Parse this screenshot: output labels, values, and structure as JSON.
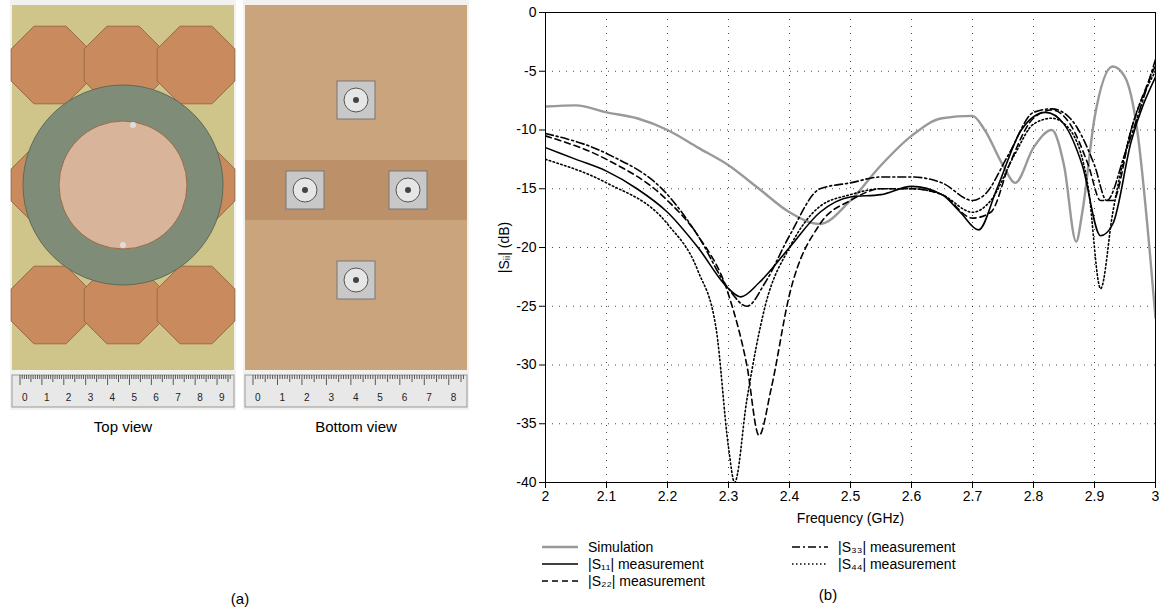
{
  "panel_labels": [
    "(a)",
    "(b)"
  ],
  "photos": [
    {
      "caption": "Top view",
      "ruler_labels": [
        0,
        1,
        2,
        3,
        4,
        5,
        6,
        7,
        8,
        9
      ]
    },
    {
      "caption": "Bottom view",
      "ruler_labels": [
        0,
        1,
        2,
        3,
        4,
        5,
        6,
        7,
        8
      ]
    }
  ],
  "chart_data": {
    "type": "line",
    "x_label": "Frequency (GHz)",
    "y_label": "|Sᵢᵢ| (dB)",
    "xlim": [
      2,
      3
    ],
    "xticks": [
      2,
      2.1,
      2.2,
      2.3,
      2.4,
      2.5,
      2.6,
      2.7,
      2.8,
      2.9,
      3
    ],
    "ylim": [
      -40,
      0
    ],
    "yticks": [
      -40,
      -35,
      -30,
      -25,
      -20,
      -15,
      -10,
      -5,
      0
    ],
    "grid": true,
    "legend": "bottom",
    "series": [
      {
        "name": "Simulation",
        "color": "#999999",
        "line_style": "solid",
        "x": [
          2.0,
          2.05,
          2.1,
          2.15,
          2.2,
          2.25,
          2.3,
          2.35,
          2.4,
          2.45,
          2.5,
          2.55,
          2.6,
          2.65,
          2.7,
          2.72,
          2.75,
          2.77,
          2.8,
          2.83,
          2.85,
          2.87,
          2.88,
          2.9,
          2.93,
          2.95,
          2.97,
          2.99,
          3.0
        ],
        "values": [
          -8,
          -7.9,
          -8.5,
          -9,
          -10,
          -11.5,
          -13,
          -15,
          -17,
          -18,
          -16,
          -13,
          -10.5,
          -9,
          -8.8,
          -10,
          -13,
          -14.5,
          -11.5,
          -10,
          -13,
          -19.5,
          -17,
          -9,
          -4.6,
          -5.5,
          -10,
          -20,
          -26
        ]
      },
      {
        "name": "|S₁₁| measurement",
        "color": "#000000",
        "line_style": "solid",
        "x": [
          2.0,
          2.05,
          2.1,
          2.15,
          2.2,
          2.25,
          2.3,
          2.32,
          2.35,
          2.4,
          2.45,
          2.5,
          2.55,
          2.6,
          2.65,
          2.68,
          2.71,
          2.74,
          2.78,
          2.82,
          2.85,
          2.88,
          2.91,
          2.93,
          2.96,
          3.0
        ],
        "values": [
          -11.5,
          -12.5,
          -13.5,
          -15,
          -17,
          -20,
          -23.5,
          -24.2,
          -23,
          -20,
          -17,
          -15.7,
          -15.5,
          -14.8,
          -15.5,
          -17,
          -18.5,
          -15,
          -10,
          -8.5,
          -9.5,
          -13,
          -19,
          -18,
          -11,
          -5.5
        ]
      },
      {
        "name": "|S₂₂| measurement",
        "color": "#000000",
        "line_style": "dashed",
        "x": [
          2.0,
          2.1,
          2.2,
          2.25,
          2.3,
          2.33,
          2.35,
          2.37,
          2.4,
          2.45,
          2.5,
          2.55,
          2.6,
          2.65,
          2.7,
          2.73,
          2.76,
          2.8,
          2.83,
          2.86,
          2.89,
          2.91,
          2.93,
          2.96,
          3.0
        ],
        "values": [
          -10.5,
          -12.5,
          -16,
          -19,
          -24,
          -30,
          -36,
          -32,
          -24,
          -18,
          -16,
          -15,
          -15,
          -15.5,
          -17.5,
          -17,
          -13,
          -9,
          -8.3,
          -9.5,
          -13,
          -16,
          -16,
          -10,
          -4.5
        ]
      },
      {
        "name": "|S₃₃| measurement",
        "color": "#000000",
        "line_style": "dashdot",
        "x": [
          2.0,
          2.1,
          2.2,
          2.25,
          2.3,
          2.33,
          2.36,
          2.4,
          2.45,
          2.5,
          2.55,
          2.6,
          2.65,
          2.7,
          2.72,
          2.76,
          2.8,
          2.83,
          2.86,
          2.9,
          2.92,
          2.95,
          3.0
        ],
        "values": [
          -10.3,
          -12,
          -15.5,
          -19,
          -23.5,
          -25,
          -23,
          -19,
          -15,
          -14.5,
          -14,
          -14,
          -14.5,
          -16,
          -15.5,
          -12,
          -8.5,
          -8.2,
          -9,
          -13,
          -16,
          -12,
          -4
        ]
      },
      {
        "name": "|S₄₄| measurement",
        "color": "#000000",
        "line_style": "dotted",
        "x": [
          2.0,
          2.1,
          2.2,
          2.25,
          2.28,
          2.3,
          2.31,
          2.33,
          2.36,
          2.4,
          2.45,
          2.5,
          2.55,
          2.6,
          2.65,
          2.7,
          2.73,
          2.77,
          2.8,
          2.83,
          2.86,
          2.89,
          2.91,
          2.93,
          2.96,
          3.0
        ],
        "values": [
          -12.5,
          -14.5,
          -18,
          -22,
          -27,
          -37,
          -40,
          -33,
          -25,
          -20,
          -16.5,
          -15.5,
          -15,
          -15,
          -15.5,
          -17,
          -16,
          -12,
          -9.5,
          -9,
          -10,
          -15,
          -23.5,
          -17,
          -10,
          -5
        ]
      }
    ]
  }
}
